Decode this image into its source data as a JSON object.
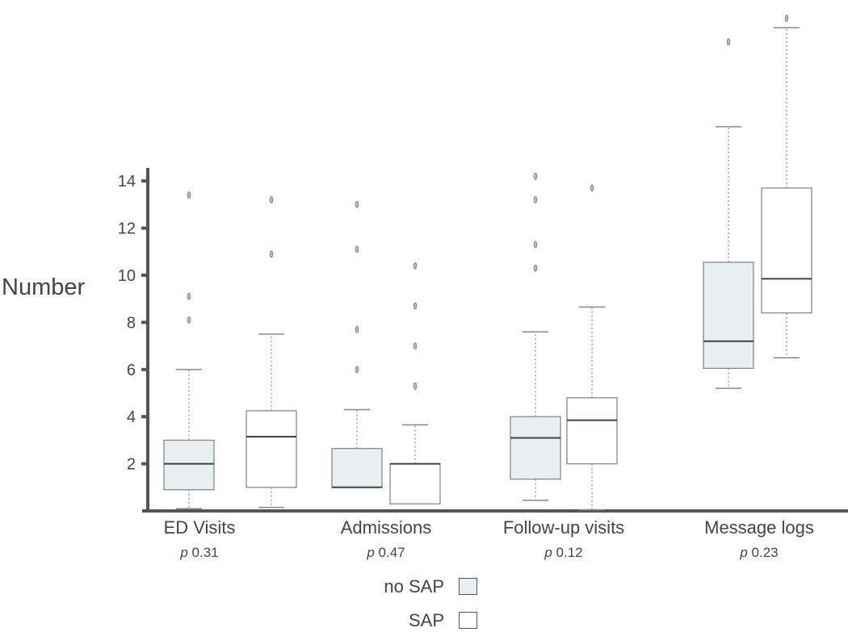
{
  "chart_data": {
    "type": "box",
    "title": "",
    "ylabel": "Number",
    "xlabel": "",
    "ylim": [
      0,
      21
    ],
    "yticks": [
      2,
      4,
      6,
      8,
      10,
      12,
      14
    ],
    "grid": false,
    "legend_position": "bottom-center",
    "categories": [
      "ED Visits",
      "Admissions",
      "Follow-up visits",
      "Message logs"
    ],
    "p_values": [
      "0.31",
      "0.47",
      "0.12",
      "0.23"
    ],
    "p_prefix": "p",
    "series": [
      {
        "name": "no SAP",
        "color": "#e8eff0",
        "boxes": [
          {
            "whisker_low": 0.1,
            "q1": 0.9,
            "median": 2.0,
            "q3": 3.0,
            "whisker_high": 6.0,
            "outliers": [
              8.1,
              9.1,
              13.4
            ]
          },
          {
            "whisker_low": 1.0,
            "q1": 1.0,
            "median": 1.0,
            "q3": 2.65,
            "whisker_high": 4.3,
            "outliers": [
              6.0,
              7.7,
              11.1,
              13.0
            ]
          },
          {
            "whisker_low": 0.45,
            "q1": 1.35,
            "median": 3.1,
            "q3": 4.0,
            "whisker_high": 7.6,
            "outliers": [
              10.3,
              11.3,
              13.2,
              14.2
            ]
          },
          {
            "whisker_low": 5.2,
            "q1": 6.05,
            "median": 7.2,
            "q3": 10.55,
            "whisker_high": 16.3,
            "outliers": [
              19.9
            ]
          }
        ]
      },
      {
        "name": "SAP",
        "color": "#ffffff",
        "boxes": [
          {
            "whisker_low": 0.15,
            "q1": 1.0,
            "median": 3.15,
            "q3": 4.25,
            "whisker_high": 7.5,
            "outliers": [
              10.9,
              13.2
            ]
          },
          {
            "whisker_low": 0.3,
            "q1": 0.3,
            "median": 2.0,
            "q3": 2.0,
            "whisker_high": 3.65,
            "outliers": [
              5.3,
              7.0,
              8.7,
              10.4
            ]
          },
          {
            "whisker_low": 0.05,
            "q1": 2.0,
            "median": 3.85,
            "q3": 4.8,
            "whisker_high": 8.65,
            "outliers": [
              13.7
            ]
          },
          {
            "whisker_low": 6.5,
            "q1": 8.4,
            "median": 9.85,
            "q3": 13.7,
            "whisker_high": 20.5,
            "outliers": [
              20.9
            ]
          }
        ]
      }
    ]
  },
  "legend": {
    "items": [
      {
        "label": "no SAP",
        "color": "#e8eff0"
      },
      {
        "label": "SAP",
        "color": "#ffffff"
      }
    ]
  }
}
